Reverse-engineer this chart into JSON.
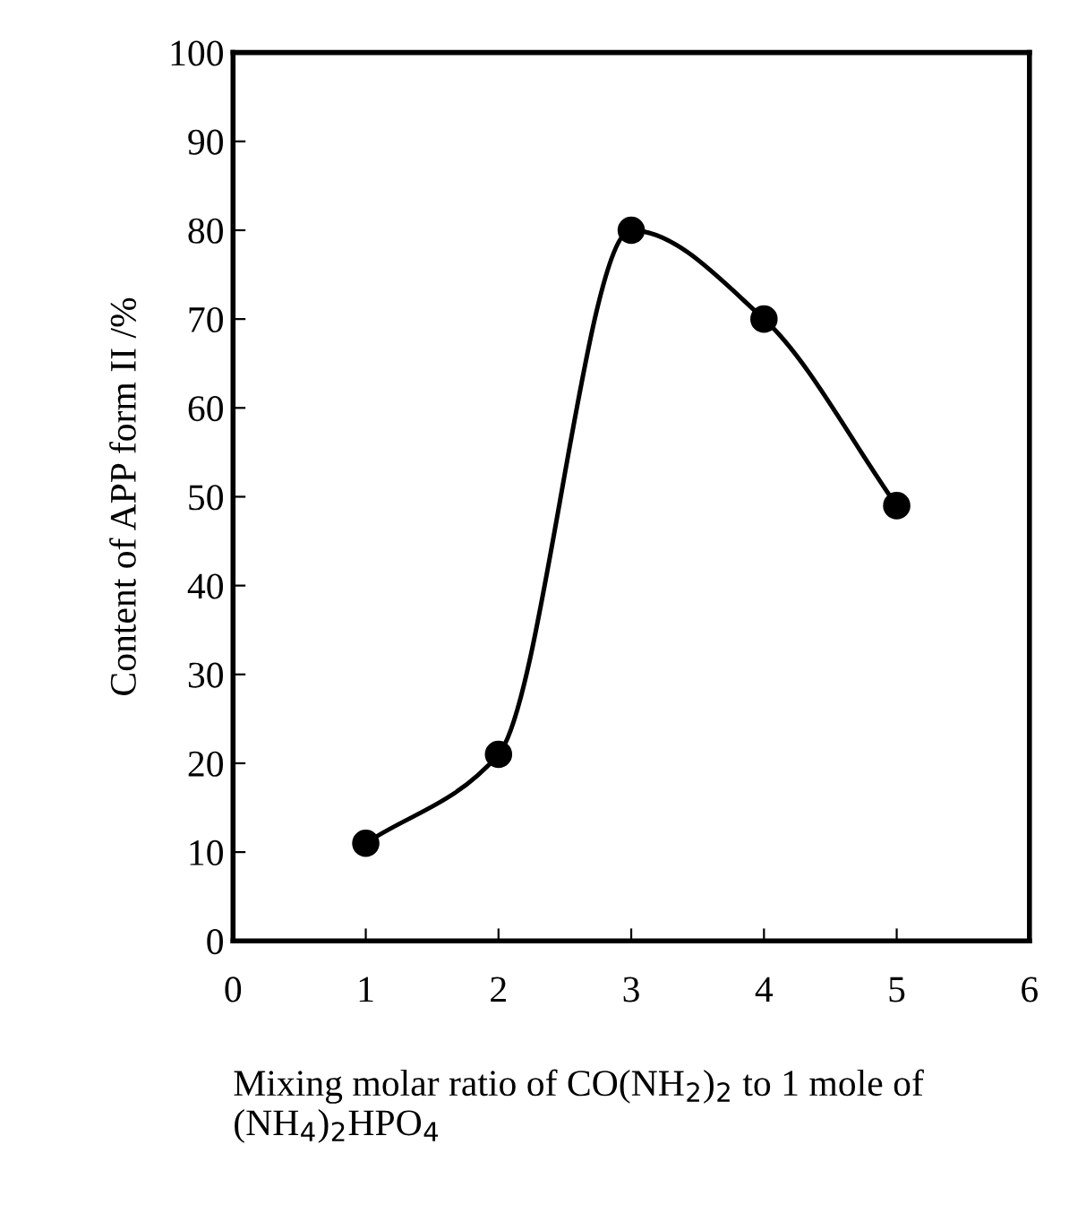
{
  "chart_data": {
    "type": "line",
    "xlabel": "Mixing molar ratio of CO(NH$_{2}$)$_{2}$ to 1 mole of (NH$_{4}$)$_{2}$HPO$_{4}$",
    "ylabel": "Content of APP form II /%",
    "x": [
      1,
      2,
      3,
      4,
      5
    ],
    "series": [
      {
        "color": "#000000",
        "values": [
          11,
          21,
          80,
          70,
          49
        ]
      }
    ],
    "xlim": [
      0,
      6
    ],
    "xticks": [
      0,
      1,
      2,
      3,
      4,
      5,
      6
    ],
    "ylim": [
      0,
      100
    ],
    "yticks": [
      0,
      10,
      20,
      30,
      40,
      50,
      60,
      70,
      80,
      90,
      100
    ],
    "marker": "circle",
    "line_style": "solid",
    "grid": false
  }
}
